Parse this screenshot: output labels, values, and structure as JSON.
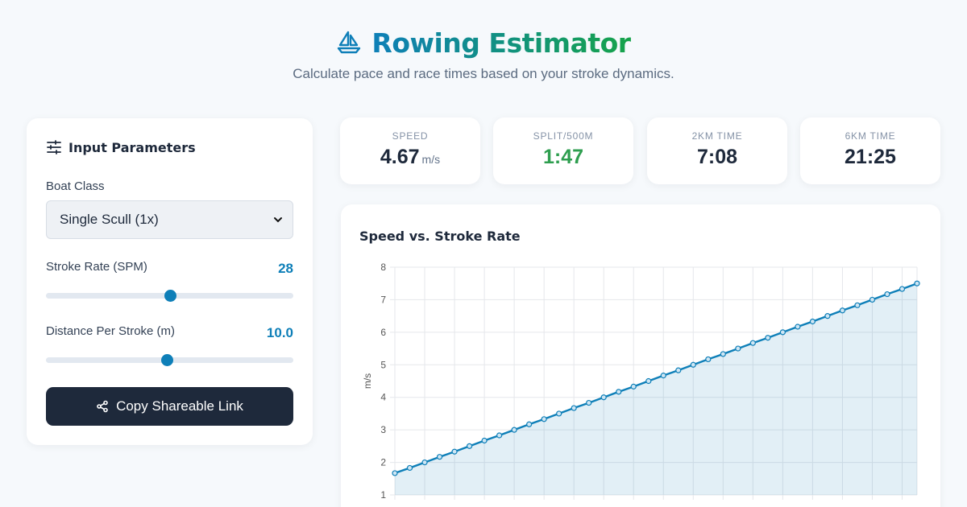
{
  "header": {
    "title": "Rowing Estimator",
    "subtitle": "Calculate pace and race times based on your stroke dynamics.",
    "icon": "sailboat-icon"
  },
  "input_panel": {
    "title": "Input Parameters",
    "icon": "sliders-icon",
    "boat_class": {
      "label": "Boat Class",
      "value": "Single Scull (1x)"
    },
    "stroke_rate": {
      "label": "Stroke Rate (SPM)",
      "value": "28",
      "fraction": 0.5
    },
    "distance_per_stroke": {
      "label": "Distance Per Stroke (m)",
      "value": "10.0",
      "fraction": 0.49
    },
    "share_button": {
      "label": "Copy Shareable Link",
      "icon": "share-icon"
    }
  },
  "stats": [
    {
      "label": "SPEED",
      "value": "4.67",
      "unit": "m/s"
    },
    {
      "label": "SPLIT/500M",
      "value": "1:47",
      "unit": ""
    },
    {
      "label": "2KM TIME",
      "value": "7:08",
      "unit": ""
    },
    {
      "label": "6KM TIME",
      "value": "21:25",
      "unit": ""
    }
  ],
  "colors": {
    "accent": "#0e7fb8",
    "split_green": "#2e9e4f",
    "dark_button": "#1e293b"
  },
  "chart_data": {
    "type": "line",
    "title": "Speed vs. Stroke Rate",
    "ylabel": "m/s",
    "xlabel": "",
    "ylim": [
      1,
      8
    ],
    "yticks": [
      1,
      2,
      3,
      4,
      5,
      6,
      7,
      8
    ],
    "grid": true,
    "area_fill": true,
    "series": [
      {
        "values": [
          1.67,
          1.83,
          2.0,
          2.17,
          2.33,
          2.5,
          2.67,
          2.83,
          3.0,
          3.17,
          3.33,
          3.5,
          3.67,
          3.83,
          4.0,
          4.17,
          4.33,
          4.5,
          4.67,
          4.83,
          5.0,
          5.17,
          5.33,
          5.5,
          5.67,
          5.83,
          6.0,
          6.17,
          6.33,
          6.5,
          6.67,
          6.83,
          7.0,
          7.17,
          7.33,
          7.5
        ]
      }
    ]
  }
}
